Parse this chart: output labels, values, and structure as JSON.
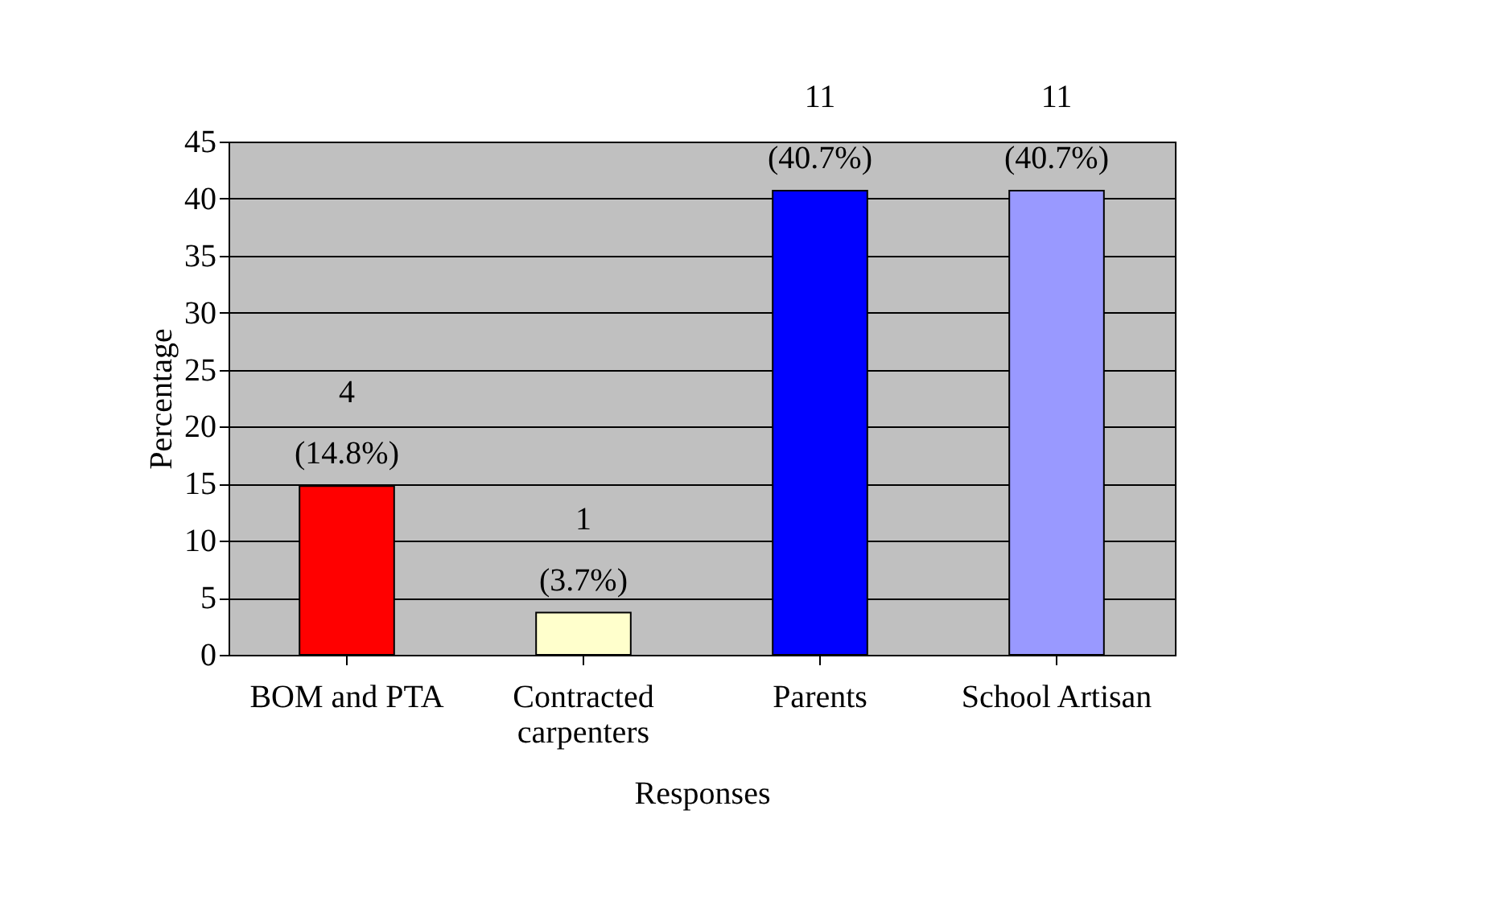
{
  "chart_data": {
    "type": "bar",
    "xlabel": "Responses",
    "ylabel": "Percentage",
    "categories": [
      "BOM and PTA",
      "Contracted\ncarpenters",
      "Parents",
      "School Artisan"
    ],
    "values": [
      14.8,
      3.7,
      40.7,
      40.7
    ],
    "colors": [
      "#ff0000",
      "#ffffcc",
      "#0000ff",
      "#9999ff"
    ],
    "value_labels": [
      "4\n(14.8%)",
      "1\n(3.7%)",
      "11\n(40.7%)",
      "11\n(40.7%)"
    ],
    "ylim": [
      0,
      45
    ],
    "yticks": [
      0,
      5,
      10,
      15,
      20,
      25,
      30,
      35,
      40,
      45
    ],
    "grid": "y"
  }
}
